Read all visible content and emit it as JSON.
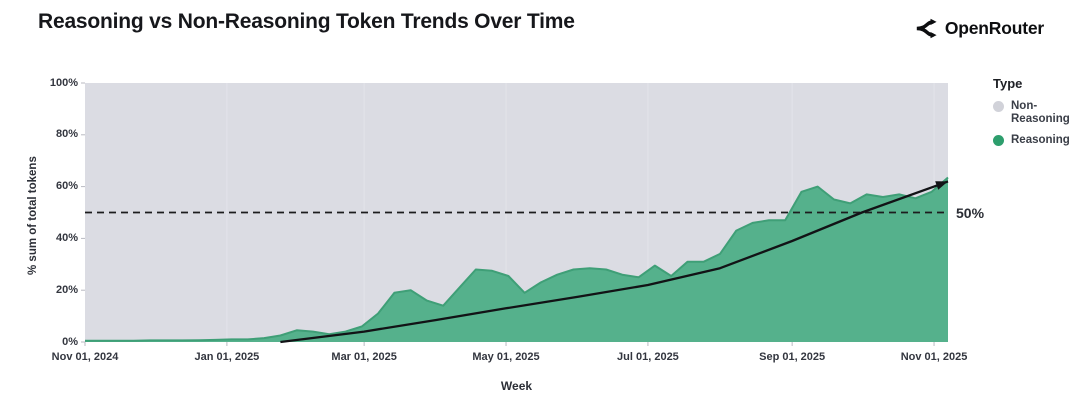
{
  "header": {
    "title": "Reasoning vs Non-Reasoning Token Trends Over Time",
    "brand": "OpenRouter"
  },
  "colors": {
    "plot_background": "#dbdce3",
    "gridline": "#e3e4ea",
    "reasoning_fill": "#55b18c",
    "reasoning_edge": "#3f9f77",
    "non_reasoning": "#d1d2d9",
    "legend_reasoning_dot": "#2d9e6d",
    "trend_line": "#121316",
    "ref_line": "#1c1c1e",
    "tick": "#b9bac2"
  },
  "chart_data": {
    "type": "area",
    "title": "Reasoning vs Non-Reasoning Token Trends Over Time",
    "xlabel": "Week",
    "ylabel": "% sum of total tokens",
    "stacked_to": 100,
    "ylim": [
      0,
      100
    ],
    "x_start_date": "2024-11-01",
    "total_days": 371,
    "week_step_days": 7,
    "x_tick_labels": [
      "Nov 01, 2024",
      "Jan 01, 2025",
      "Mar 01, 2025",
      "May 01, 2025",
      "Jul 01, 2025",
      "Sep 01, 2025",
      "Nov 01, 2025"
    ],
    "x_tick_day_offsets": [
      0,
      61,
      120,
      181,
      242,
      304,
      365
    ],
    "y_tick_labels": [
      "0%",
      "20%",
      "40%",
      "60%",
      "80%",
      "100%"
    ],
    "y_tick_values": [
      0,
      20,
      40,
      60,
      80,
      100
    ],
    "series": [
      {
        "name": "Reasoning",
        "color": "#2d9e6d",
        "weekly_values_pct": [
          0.5,
          0.5,
          0.5,
          0.5,
          0.6,
          0.6,
          0.6,
          0.7,
          0.8,
          1,
          1,
          1.5,
          2.5,
          4.5,
          4,
          3,
          4,
          6,
          11,
          19,
          20,
          16,
          14,
          21,
          28,
          27.5,
          25.5,
          19,
          23,
          26,
          28,
          28.5,
          28,
          26,
          25,
          29.5,
          25.5,
          31,
          31,
          34,
          43,
          46,
          47,
          47,
          58,
          60,
          55,
          53.5,
          57,
          56,
          57,
          55.5,
          58,
          63.5
        ]
      },
      {
        "name": "Non-Reasoning",
        "color": "#d1d2d9",
        "definition": "remainder to 100%"
      }
    ],
    "ref_line": {
      "value": 50,
      "label": "50%",
      "style": "dashed"
    },
    "trend_line": {
      "style": "solid-arrow",
      "day_offsets": [
        84,
        120,
        151,
        181,
        212,
        242,
        273,
        304,
        334,
        365,
        371
      ],
      "values_pct": [
        0,
        4,
        8.5,
        13,
        17.5,
        22,
        28.5,
        39,
        50,
        60,
        62
      ]
    },
    "legend": {
      "title": "Type",
      "position": "right",
      "items": [
        {
          "label": "Non-Reasoning",
          "color": "#d1d2d9"
        },
        {
          "label": "Reasoning",
          "color": "#2d9e6d"
        }
      ]
    }
  }
}
